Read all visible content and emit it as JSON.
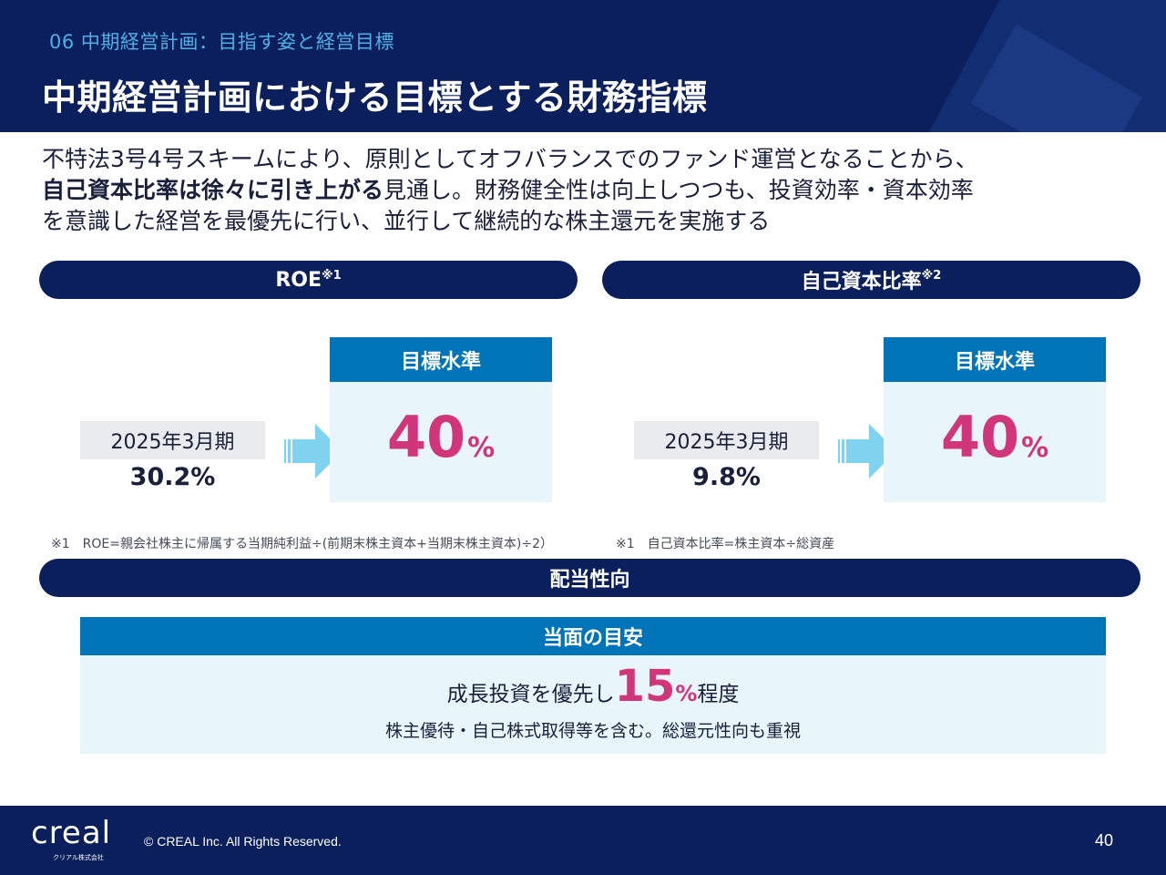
{
  "header": {
    "section": "06 中期経営計画：目指す姿と経営目標",
    "title": "中期経営計画における目標とする財務指標"
  },
  "intro": {
    "line1": "不特法3号4号スキームにより、原則としてオフバランスでのファンド運営となることから、",
    "line2_bold": "自己資本比率は徐々に引き上がる",
    "line2_rest": "見通し。財務健全性は向上しつつも、投資効率・資本効率",
    "line3": "を意識した経営を最優先に行い、並行して継続的な株主還元を実施する"
  },
  "roe": {
    "label": "ROE",
    "footnote_mark": "※1",
    "period": "2025年3月期",
    "current": "30.2%",
    "target_head": "目標水準",
    "target_value": "40",
    "target_unit": "%",
    "note": "※1　ROE=親会社株主に帰属する当期純利益÷(前期末株主資本+当期末株主資本)÷2）"
  },
  "equity_ratio": {
    "label": "自己資本比率",
    "footnote_mark": "※2",
    "period": "2025年3月期",
    "current": "9.8%",
    "target_head": "目標水準",
    "target_value": "40",
    "target_unit": "%",
    "note": "※1　自己資本比率=株主資本÷総資産"
  },
  "dividend": {
    "label": "配当性向",
    "head": "当面の目安",
    "main_prefix": "成長投資を優先し",
    "main_value": "15",
    "main_unit": "%",
    "main_suffix": "程度",
    "sub": "株主優待・自己株式取得等を含む。総還元性向も重視"
  },
  "footer": {
    "logo": "creal",
    "logo_sub": "クリアル株式会社",
    "copyright": "© CREAL Inc. All Rights Reserved.",
    "page": "40"
  },
  "colors": {
    "navy": "#0b1f5c",
    "blue": "#0074b8",
    "light_blue": "#e8f5fb",
    "accent": "#d1367a",
    "arrow": "#7fd3ee"
  }
}
